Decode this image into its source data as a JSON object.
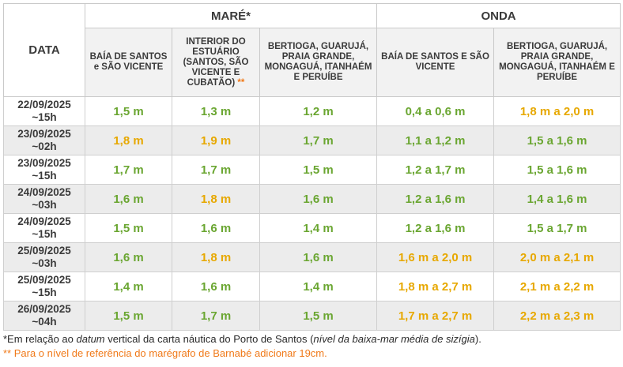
{
  "headers": {
    "data": "DATA",
    "mare": "MARÉ*",
    "onda": "ONDA",
    "mare_cols": [
      {
        "label": "BAÍA DE SANTOS e SÃO VICENTE",
        "note": ""
      },
      {
        "label": "INTERIOR DO ESTUÁRIO (SANTOS, SÃO VICENTE E CUBATÃO)",
        "note": "**"
      },
      {
        "label": "BERTIOGA, GUARUJÁ, PRAIA GRANDE, MONGAGUÁ, ITANHAÉM E PERUÍBE",
        "note": ""
      }
    ],
    "onda_cols": [
      {
        "label": "BAÍA DE SANTOS E SÃO VICENTE"
      },
      {
        "label": "BERTIOGA, GUARUJÁ, PRAIA GRANDE, MONGAGUÁ, ITANHAÉM E PERUÍBE"
      }
    ]
  },
  "colors": {
    "green": "#6aa631",
    "yellow": "#e7a800",
    "note_orange": "#f07a1a"
  },
  "rows": [
    {
      "date": "22/09/2025",
      "time": "~15h",
      "cells": [
        {
          "v": "1,5 m",
          "c": "green"
        },
        {
          "v": "1,3 m",
          "c": "green"
        },
        {
          "v": "1,2 m",
          "c": "green"
        },
        {
          "v": "0,4 a 0,6 m",
          "c": "green"
        },
        {
          "v": "1,8 m a 2,0 m",
          "c": "yellow"
        }
      ]
    },
    {
      "date": "23/09/2025",
      "time": "~02h",
      "cells": [
        {
          "v": "1,8 m",
          "c": "yellow"
        },
        {
          "v": "1,9 m",
          "c": "yellow"
        },
        {
          "v": "1,7 m",
          "c": "green"
        },
        {
          "v": "1,1 a 1,2 m",
          "c": "green"
        },
        {
          "v": "1,5 a 1,6 m",
          "c": "green"
        }
      ]
    },
    {
      "date": "23/09/2025",
      "time": "~15h",
      "cells": [
        {
          "v": "1,7 m",
          "c": "green"
        },
        {
          "v": "1,7 m",
          "c": "green"
        },
        {
          "v": "1,5 m",
          "c": "green"
        },
        {
          "v": "1,2 a 1,7 m",
          "c": "green"
        },
        {
          "v": "1,5 a 1,6 m",
          "c": "green"
        }
      ]
    },
    {
      "date": "24/09/2025",
      "time": "~03h",
      "cells": [
        {
          "v": "1,6 m",
          "c": "green"
        },
        {
          "v": "1,8 m",
          "c": "yellow"
        },
        {
          "v": "1,6 m",
          "c": "green"
        },
        {
          "v": "1,2 a 1,6 m",
          "c": "green"
        },
        {
          "v": "1,4 a 1,6 m",
          "c": "green"
        }
      ]
    },
    {
      "date": "24/09/2025",
      "time": "~15h",
      "cells": [
        {
          "v": "1,5 m",
          "c": "green"
        },
        {
          "v": "1,6 m",
          "c": "green"
        },
        {
          "v": "1,4 m",
          "c": "green"
        },
        {
          "v": "1,2 a 1,6 m",
          "c": "green"
        },
        {
          "v": "1,5 a 1,7 m",
          "c": "green"
        }
      ]
    },
    {
      "date": "25/09/2025",
      "time": "~03h",
      "cells": [
        {
          "v": "1,6 m",
          "c": "green"
        },
        {
          "v": "1,8 m",
          "c": "yellow"
        },
        {
          "v": "1,6 m",
          "c": "green"
        },
        {
          "v": "1,6 m a 2,0 m",
          "c": "yellow"
        },
        {
          "v": "2,0 m a 2,1 m",
          "c": "yellow"
        }
      ]
    },
    {
      "date": "25/09/2025",
      "time": "~15h",
      "cells": [
        {
          "v": "1,4 m",
          "c": "green"
        },
        {
          "v": "1,6 m",
          "c": "green"
        },
        {
          "v": "1,4 m",
          "c": "green"
        },
        {
          "v": "1,8 m a 2,7 m",
          "c": "yellow"
        },
        {
          "v": "2,1 m a 2,2 m",
          "c": "yellow"
        }
      ]
    },
    {
      "date": "26/09/2025",
      "time": "~04h",
      "cells": [
        {
          "v": "1,5 m",
          "c": "green"
        },
        {
          "v": "1,7 m",
          "c": "green"
        },
        {
          "v": "1,5 m",
          "c": "green"
        },
        {
          "v": "1,7 m a 2,7 m",
          "c": "yellow"
        },
        {
          "v": "2,2 m a 2,3 m",
          "c": "yellow"
        }
      ]
    }
  ],
  "notes": {
    "note1_prefix": "*Em relação ao ",
    "note1_italic1": "datum",
    "note1_middle": " vertical da carta náutica do Porto de Santos (",
    "note1_italic2": "nível da baixa-mar média de sizígia",
    "note1_suffix": ").",
    "note2": "** Para o nível de referência do marégrafo de Barnabé adicionar 19cm."
  }
}
